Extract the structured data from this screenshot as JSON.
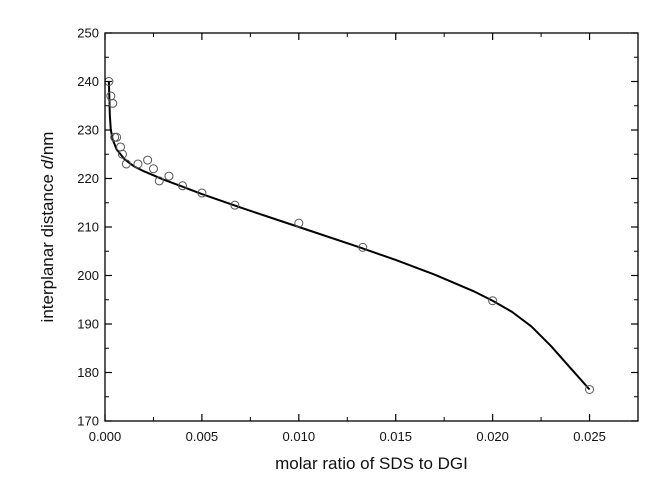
{
  "chart_data": {
    "type": "scatter",
    "title": "",
    "xlabel": "molar ratio of SDS to DGI",
    "ylabel_prefix": "interplanar distance ",
    "ylabel_symbol": "d",
    "ylabel_suffix": "/nm",
    "xlim": [
      0,
      0.0275
    ],
    "ylim": [
      170,
      250
    ],
    "x_ticks": [
      0.0,
      0.005,
      0.01,
      0.015,
      0.02,
      0.025
    ],
    "x_tick_labels": [
      "0.000",
      "0.005",
      "0.010",
      "0.015",
      "0.020",
      "0.025"
    ],
    "y_ticks": [
      170,
      180,
      190,
      200,
      210,
      220,
      230,
      240,
      250
    ],
    "y_tick_labels": [
      "170",
      "180",
      "190",
      "200",
      "210",
      "220",
      "230",
      "240",
      "250"
    ],
    "grid": false,
    "legend": "none",
    "colors": {
      "axis": "#000000",
      "marker": "#555555",
      "fit_line": "#000000"
    },
    "series": [
      {
        "kind": "points",
        "marker": "open-circle",
        "x": [
          0.0002,
          0.0003,
          0.0004,
          0.0005,
          0.0006,
          0.0008,
          0.0009,
          0.0011,
          0.0017,
          0.0022,
          0.0025,
          0.0028,
          0.0033,
          0.004,
          0.005,
          0.0067,
          0.01,
          0.0133,
          0.02,
          0.025
        ],
        "y": [
          240.0,
          237.0,
          235.5,
          228.5,
          228.5,
          226.5,
          225.0,
          223.0,
          223.0,
          223.8,
          222.0,
          219.5,
          220.5,
          218.5,
          217.0,
          214.5,
          210.8,
          205.8,
          194.8,
          176.5
        ]
      },
      {
        "kind": "line",
        "x": [
          0.0002,
          0.00025,
          0.0003,
          0.0004,
          0.0006,
          0.0008,
          0.001,
          0.0015,
          0.002,
          0.003,
          0.004,
          0.005,
          0.007,
          0.01,
          0.013,
          0.015,
          0.017,
          0.019,
          0.02,
          0.021,
          0.022,
          0.023,
          0.024,
          0.025
        ],
        "y": [
          240.0,
          233.0,
          230.0,
          228.0,
          226.0,
          225.0,
          224.0,
          222.5,
          221.5,
          219.8,
          218.3,
          216.8,
          214.0,
          210.0,
          206.0,
          203.2,
          200.2,
          196.8,
          194.8,
          192.5,
          189.5,
          185.5,
          181.0,
          176.5
        ]
      }
    ]
  }
}
